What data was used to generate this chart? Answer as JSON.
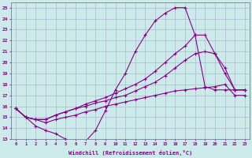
{
  "xlabel": "Windchill (Refroidissement éolien,°C)",
  "xlim": [
    -0.5,
    23.5
  ],
  "ylim": [
    13,
    25.5
  ],
  "xticks": [
    0,
    1,
    2,
    3,
    4,
    5,
    6,
    7,
    8,
    9,
    10,
    11,
    12,
    13,
    14,
    15,
    16,
    17,
    18,
    19,
    20,
    21,
    22,
    23
  ],
  "yticks": [
    13,
    14,
    15,
    16,
    17,
    18,
    19,
    20,
    21,
    22,
    23,
    24,
    25
  ],
  "bg_color": "#cceaea",
  "grid_color": "#aabbcc",
  "line_color": "#880088",
  "figsize": [
    3.2,
    2.0
  ],
  "dpi": 100,
  "lines": [
    {
      "x": [
        0,
        1,
        2,
        3,
        4,
        5,
        6,
        7,
        8,
        9,
        10,
        11,
        12,
        13,
        14,
        15,
        16,
        17,
        18,
        19,
        20,
        21,
        22,
        23
      ],
      "y": [
        15.8,
        15.0,
        14.2,
        13.8,
        13.5,
        13.0,
        12.8,
        12.8,
        13.8,
        15.6,
        17.5,
        19.0,
        21.0,
        22.5,
        23.8,
        24.5,
        25.0,
        25.0,
        22.5,
        17.8,
        17.5,
        17.5,
        17.5,
        17.5
      ]
    },
    {
      "x": [
        0,
        1,
        2,
        3,
        4,
        5,
        6,
        7,
        8,
        9,
        10,
        11,
        12,
        13,
        14,
        15,
        16,
        17,
        18,
        19,
        20,
        21,
        22,
        23
      ],
      "y": [
        15.8,
        15.0,
        14.8,
        14.8,
        15.2,
        15.5,
        15.8,
        16.2,
        16.5,
        16.8,
        17.2,
        17.6,
        18.0,
        18.5,
        19.2,
        20.0,
        20.8,
        21.5,
        22.5,
        22.5,
        20.8,
        19.0,
        17.5,
        17.5
      ]
    },
    {
      "x": [
        0,
        1,
        2,
        3,
        4,
        5,
        6,
        7,
        8,
        9,
        10,
        11,
        12,
        13,
        14,
        15,
        16,
        17,
        18,
        19,
        20,
        21,
        22,
        23
      ],
      "y": [
        15.8,
        15.0,
        14.8,
        14.8,
        15.2,
        15.5,
        15.8,
        16.0,
        16.3,
        16.5,
        16.8,
        17.0,
        17.4,
        17.8,
        18.2,
        18.8,
        19.5,
        20.2,
        20.8,
        21.0,
        20.8,
        19.5,
        17.5,
        17.5
      ]
    },
    {
      "x": [
        0,
        1,
        2,
        3,
        4,
        5,
        6,
        7,
        8,
        9,
        10,
        11,
        12,
        13,
        14,
        15,
        16,
        17,
        18,
        19,
        20,
        21,
        22,
        23
      ],
      "y": [
        15.8,
        15.0,
        14.8,
        14.5,
        14.8,
        15.0,
        15.2,
        15.5,
        15.7,
        16.0,
        16.2,
        16.4,
        16.6,
        16.8,
        17.0,
        17.2,
        17.4,
        17.5,
        17.6,
        17.7,
        17.8,
        18.0,
        17.0,
        17.0
      ]
    }
  ]
}
